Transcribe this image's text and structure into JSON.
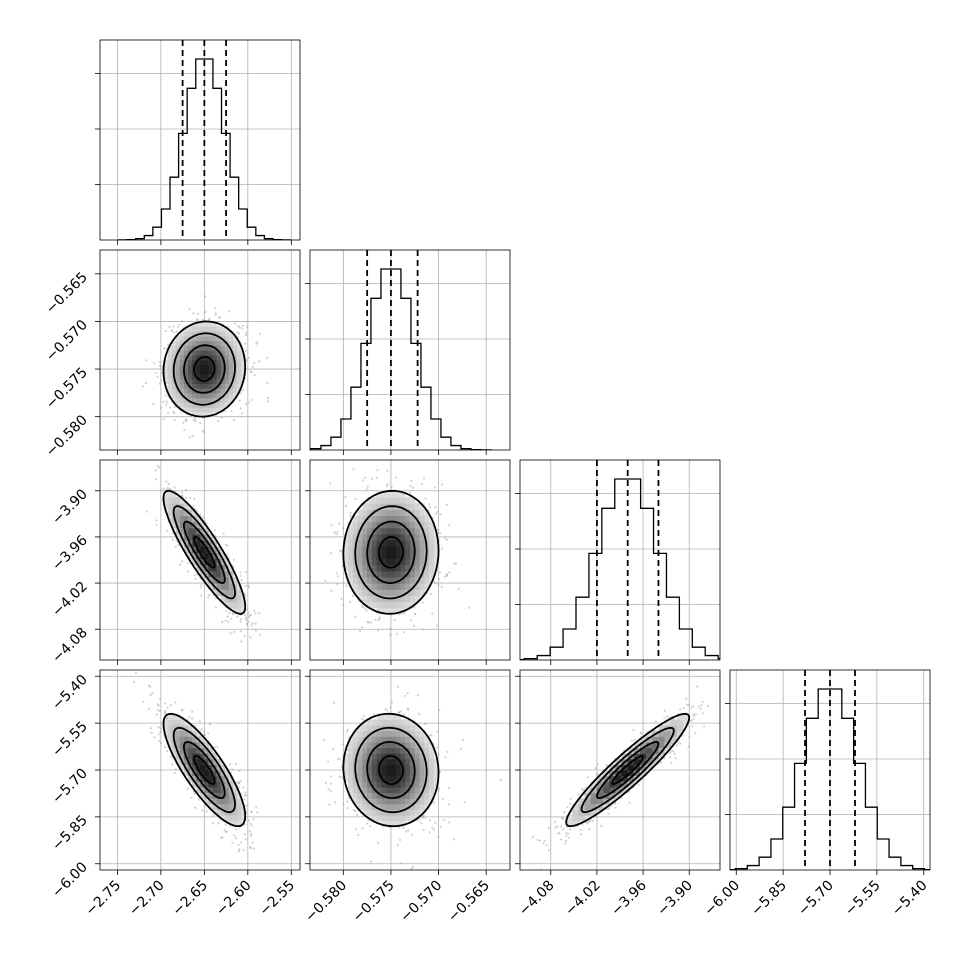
{
  "chart_data": {
    "type": "corner",
    "title": "",
    "grid": true,
    "parameters": [
      {
        "mean": -2.65,
        "std": 0.0235,
        "range": [
          -2.77,
          -2.54
        ],
        "ticks": [
          -2.75,
          -2.7,
          -2.65,
          -2.6,
          -2.55
        ],
        "tick_labels": [
          "−2.75",
          "−2.70",
          "−2.65",
          "−2.60",
          "−2.55"
        ],
        "quantiles": [
          -2.675,
          -2.65,
          -2.625
        ]
      },
      {
        "mean": -0.575,
        "std": 0.0025,
        "range": [
          -0.5835,
          -0.5625
        ],
        "ticks": [
          -0.58,
          -0.575,
          -0.57,
          -0.565
        ],
        "tick_labels": [
          "−0.580",
          "−0.575",
          "−0.570",
          "−0.565"
        ],
        "quantiles": [
          -0.5775,
          -0.575,
          -0.5722
        ]
      },
      {
        "mean": -3.98,
        "std": 0.04,
        "range": [
          -4.12,
          -3.86
        ],
        "ticks": [
          -4.08,
          -4.02,
          -3.96,
          -3.9
        ],
        "tick_labels": [
          "−4.08",
          "−4.02",
          "−3.96",
          "−3.90"
        ],
        "quantiles": [
          -4.02,
          -3.98,
          -3.94
        ]
      },
      {
        "mean": -5.7,
        "std": 0.09,
        "range": [
          -6.02,
          -5.38
        ],
        "ticks": [
          -6.0,
          -5.85,
          -5.7,
          -5.55,
          -5.4
        ],
        "tick_labels": [
          "−6.00",
          "−5.85",
          "−5.70",
          "−5.55",
          "−5.40"
        ],
        "quantiles": [
          -5.78,
          -5.7,
          -5.62
        ]
      }
    ],
    "correlations": [
      [
        1.0,
        0.05,
        -0.88,
        -0.82
      ],
      [
        0.05,
        1.0,
        0.03,
        -0.05
      ],
      [
        -0.88,
        0.03,
        1.0,
        0.93
      ],
      [
        -0.82,
        -0.05,
        0.93,
        1.0
      ]
    ],
    "contour_levels_sigma": [
      0.5,
      1.0,
      1.5,
      2.0
    ],
    "histogram_bins": 20
  }
}
